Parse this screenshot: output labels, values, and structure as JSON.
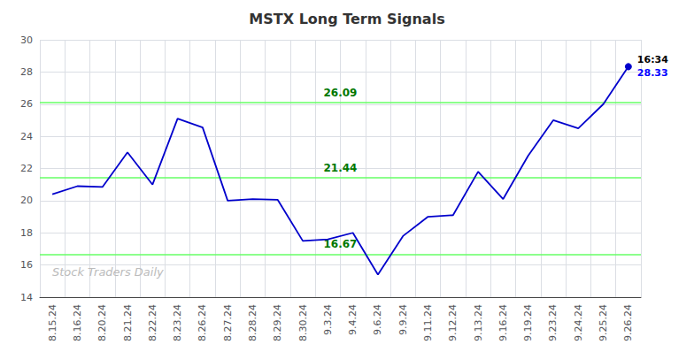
{
  "chart_data": {
    "type": "line",
    "title": "MSTX Long Term Signals",
    "categories": [
      "8.15.24",
      "8.16.24",
      "8.20.24",
      "8.21.24",
      "8.22.24",
      "8.23.24",
      "8.26.24",
      "8.27.24",
      "8.28.24",
      "8.29.24",
      "8.30.24",
      "9.3.24",
      "9.4.24",
      "9.6.24",
      "9.9.24",
      "9.11.24",
      "9.12.24",
      "9.13.24",
      "9.16.24",
      "9.19.24",
      "9.23.24",
      "9.24.24",
      "9.25.24",
      "9.26.24"
    ],
    "values": [
      20.4,
      20.9,
      20.85,
      23.0,
      21.0,
      25.1,
      24.55,
      20.0,
      20.1,
      20.05,
      17.5,
      17.6,
      18.0,
      15.4,
      17.8,
      19.0,
      19.1,
      21.8,
      20.1,
      22.8,
      25.0,
      24.5,
      26.0,
      28.33
    ],
    "color": "#0000cc",
    "hlines": [
      {
        "value": 16.67,
        "color": "#66ff66"
      },
      {
        "value": 21.44,
        "color": "#66ff66"
      },
      {
        "value": 26.09,
        "color": "#66ff66"
      }
    ],
    "annotations": [
      {
        "text": "16:34",
        "color": "#000000"
      },
      {
        "text": "28.33",
        "color": "#0000ff"
      }
    ],
    "watermark": {
      "text": "Stock Traders Daily",
      "color": "#bbbbbb"
    },
    "ylim": [
      14,
      30
    ],
    "yticks": [
      14,
      16,
      18,
      20,
      22,
      24,
      26,
      28,
      30
    ],
    "grid": true
  }
}
